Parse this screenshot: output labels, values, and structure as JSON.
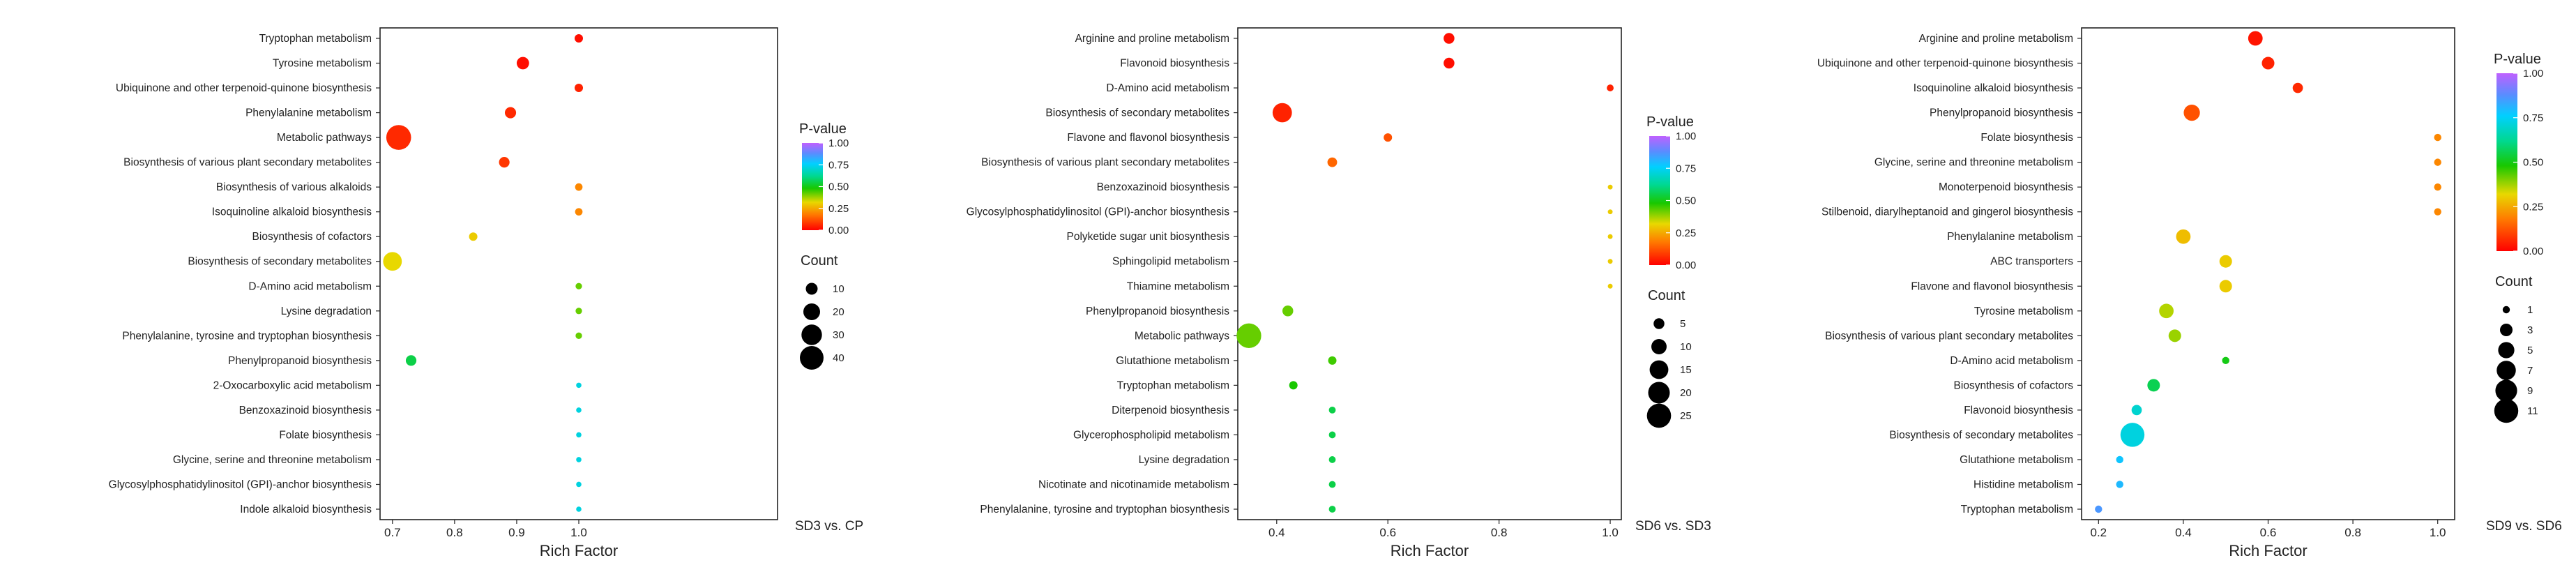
{
  "chart_data": [
    {
      "type": "scatter",
      "xlabel": "Rich Factor",
      "comparison": "SD3 vs. CP",
      "xlim": [
        0.68,
        1.32
      ],
      "xticks": [
        "0.7",
        "0.8",
        "0.9",
        "1.0"
      ],
      "xtick_values": [
        0.7,
        0.8,
        0.9,
        1.0
      ],
      "color_legend": {
        "title": "P-value",
        "ticks": [
          "1.00",
          "0.75",
          "0.50",
          "0.25",
          "0.00"
        ]
      },
      "size_legend": {
        "title": "Count",
        "labels": [
          "10",
          "20",
          "30",
          "40"
        ],
        "values": [
          10,
          20,
          30,
          40
        ]
      },
      "count_max": 45,
      "points": [
        {
          "pathway": "Tryptophan metabolism",
          "rich_factor": 1.0,
          "pvalue": 0.02,
          "count": 5
        },
        {
          "pathway": "Tyrosine metabolism",
          "rich_factor": 0.91,
          "pvalue": 0.02,
          "count": 11
        },
        {
          "pathway": "Ubiquinone and other terpenoid-quinone biosynthesis",
          "rich_factor": 1.0,
          "pvalue": 0.05,
          "count": 5
        },
        {
          "pathway": "Phenylalanine metabolism",
          "rich_factor": 0.89,
          "pvalue": 0.06,
          "count": 9
        },
        {
          "pathway": "Metabolic pathways",
          "rich_factor": 0.71,
          "pvalue": 0.06,
          "count": 44
        },
        {
          "pathway": "Biosynthesis of various plant secondary metabolites",
          "rich_factor": 0.88,
          "pvalue": 0.08,
          "count": 8
        },
        {
          "pathway": "Biosynthesis of various alkaloids",
          "rich_factor": 1.0,
          "pvalue": 0.2,
          "count": 4
        },
        {
          "pathway": "Isoquinoline alkaloid biosynthesis",
          "rich_factor": 1.0,
          "pvalue": 0.2,
          "count": 4
        },
        {
          "pathway": "Biosynthesis of cofactors",
          "rich_factor": 0.83,
          "pvalue": 0.3,
          "count": 5
        },
        {
          "pathway": "Biosynthesis of secondary metabolites",
          "rich_factor": 0.7,
          "pvalue": 0.32,
          "count": 25
        },
        {
          "pathway": "D-Amino acid metabolism",
          "rich_factor": 1.0,
          "pvalue": 0.42,
          "count": 3
        },
        {
          "pathway": "Lysine degradation",
          "rich_factor": 1.0,
          "pvalue": 0.42,
          "count": 3
        },
        {
          "pathway": "Phenylalanine, tyrosine and tryptophan biosynthesis",
          "rich_factor": 1.0,
          "pvalue": 0.42,
          "count": 3
        },
        {
          "pathway": "Phenylpropanoid biosynthesis",
          "rich_factor": 0.73,
          "pvalue": 0.55,
          "count": 8
        },
        {
          "pathway": "2-Oxocarboxylic acid metabolism",
          "rich_factor": 1.0,
          "pvalue": 0.72,
          "count": 2
        },
        {
          "pathway": "Benzoxazinoid biosynthesis",
          "rich_factor": 1.0,
          "pvalue": 0.72,
          "count": 2
        },
        {
          "pathway": "Folate biosynthesis",
          "rich_factor": 1.0,
          "pvalue": 0.72,
          "count": 2
        },
        {
          "pathway": "Glycine, serine and threonine metabolism",
          "rich_factor": 1.0,
          "pvalue": 0.72,
          "count": 2
        },
        {
          "pathway": "Glycosylphosphatidylinositol (GPI)-anchor biosynthesis",
          "rich_factor": 1.0,
          "pvalue": 0.72,
          "count": 2
        },
        {
          "pathway": "Indole alkaloid biosynthesis",
          "rich_factor": 1.0,
          "pvalue": 0.72,
          "count": 2
        }
      ]
    },
    {
      "type": "scatter",
      "xlabel": "Rich Factor",
      "comparison": "SD6 vs. SD3",
      "xlim": [
        0.33,
        1.02
      ],
      "xticks": [
        "0.4",
        "0.6",
        "0.8",
        "1.0"
      ],
      "xtick_values": [
        0.4,
        0.6,
        0.8,
        1.0
      ],
      "color_legend": {
        "title": "P-value",
        "ticks": [
          "1.00",
          "0.75",
          "0.50",
          "0.25",
          "0.00"
        ]
      },
      "size_legend": {
        "title": "Count",
        "labels": [
          "5",
          "10",
          "15",
          "20",
          "25"
        ],
        "values": [
          5,
          10,
          15,
          20,
          25
        ]
      },
      "count_max": 27,
      "points": [
        {
          "pathway": "Arginine and proline metabolism",
          "rich_factor": 0.71,
          "pvalue": 0.02,
          "count": 5
        },
        {
          "pathway": "Flavonoid biosynthesis",
          "rich_factor": 0.71,
          "pvalue": 0.02,
          "count": 5
        },
        {
          "pathway": "D-Amino acid metabolism",
          "rich_factor": 1.0,
          "pvalue": 0.05,
          "count": 2
        },
        {
          "pathway": "Biosynthesis of secondary metabolites",
          "rich_factor": 0.41,
          "pvalue": 0.05,
          "count": 16
        },
        {
          "pathway": "Flavone and flavonol biosynthesis",
          "rich_factor": 0.6,
          "pvalue": 0.12,
          "count": 3
        },
        {
          "pathway": "Biosynthesis of various plant secondary metabolites",
          "rich_factor": 0.5,
          "pvalue": 0.15,
          "count": 4
        },
        {
          "pathway": "Benzoxazinoid biosynthesis",
          "rich_factor": 1.0,
          "pvalue": 0.3,
          "count": 1
        },
        {
          "pathway": "Glycosylphosphatidylinositol (GPI)-anchor biosynthesis",
          "rich_factor": 1.0,
          "pvalue": 0.3,
          "count": 1
        },
        {
          "pathway": "Polyketide sugar unit biosynthesis",
          "rich_factor": 1.0,
          "pvalue": 0.3,
          "count": 1
        },
        {
          "pathway": "Sphingolipid metabolism",
          "rich_factor": 1.0,
          "pvalue": 0.3,
          "count": 1
        },
        {
          "pathway": "Thiamine metabolism",
          "rich_factor": 1.0,
          "pvalue": 0.3,
          "count": 1
        },
        {
          "pathway": "Phenylpropanoid biosynthesis",
          "rich_factor": 0.42,
          "pvalue": 0.42,
          "count": 5
        },
        {
          "pathway": "Metabolic pathways",
          "rich_factor": 0.35,
          "pvalue": 0.42,
          "count": 26
        },
        {
          "pathway": "Glutathione metabolism",
          "rich_factor": 0.5,
          "pvalue": 0.45,
          "count": 3
        },
        {
          "pathway": "Tryptophan metabolism",
          "rich_factor": 0.43,
          "pvalue": 0.48,
          "count": 3
        },
        {
          "pathway": "Diterpenoid biosynthesis",
          "rich_factor": 0.5,
          "pvalue": 0.55,
          "count": 2
        },
        {
          "pathway": "Glycerophospholipid metabolism",
          "rich_factor": 0.5,
          "pvalue": 0.55,
          "count": 2
        },
        {
          "pathway": "Lysine degradation",
          "rich_factor": 0.5,
          "pvalue": 0.55,
          "count": 2
        },
        {
          "pathway": "Nicotinate and nicotinamide metabolism",
          "rich_factor": 0.5,
          "pvalue": 0.55,
          "count": 2
        },
        {
          "pathway": "Phenylalanine, tyrosine and tryptophan biosynthesis",
          "rich_factor": 0.5,
          "pvalue": 0.55,
          "count": 2
        }
      ]
    },
    {
      "type": "scatter",
      "xlabel": "Rich Factor",
      "comparison": "SD9 vs. SD6",
      "xlim": [
        0.16,
        1.04
      ],
      "xticks": [
        "0.2",
        "0.4",
        "0.6",
        "0.8",
        "1.0"
      ],
      "xtick_values": [
        0.2,
        0.4,
        0.6,
        0.8,
        1.0
      ],
      "color_legend": {
        "title": "P-value",
        "ticks": [
          "1.00",
          "0.75",
          "0.50",
          "0.25",
          "0.00"
        ]
      },
      "size_legend": {
        "title": "Count",
        "labels": [
          "1",
          "3",
          "5",
          "7",
          "9",
          "11"
        ],
        "values": [
          1,
          3,
          5,
          7,
          9,
          11
        ]
      },
      "count_max": 12,
      "points": [
        {
          "pathway": "Arginine and proline metabolism",
          "rich_factor": 0.57,
          "pvalue": 0.03,
          "count": 4
        },
        {
          "pathway": "Ubiquinone and other terpenoid-quinone biosynthesis",
          "rich_factor": 0.6,
          "pvalue": 0.05,
          "count": 3
        },
        {
          "pathway": "Isoquinoline alkaloid biosynthesis",
          "rich_factor": 0.67,
          "pvalue": 0.06,
          "count": 2
        },
        {
          "pathway": "Phenylpropanoid biosynthesis",
          "rich_factor": 0.42,
          "pvalue": 0.12,
          "count": 5
        },
        {
          "pathway": "Folate biosynthesis",
          "rich_factor": 1.0,
          "pvalue": 0.2,
          "count": 1
        },
        {
          "pathway": "Glycine, serine and threonine metabolism",
          "rich_factor": 1.0,
          "pvalue": 0.2,
          "count": 1
        },
        {
          "pathway": "Monoterpenoid biosynthesis",
          "rich_factor": 1.0,
          "pvalue": 0.2,
          "count": 1
        },
        {
          "pathway": "Stilbenoid, diarylheptanoid and gingerol biosynthesis",
          "rich_factor": 1.0,
          "pvalue": 0.2,
          "count": 1
        },
        {
          "pathway": "Phenylalanine metabolism",
          "rich_factor": 0.4,
          "pvalue": 0.28,
          "count": 4
        },
        {
          "pathway": "ABC transporters",
          "rich_factor": 0.5,
          "pvalue": 0.3,
          "count": 3
        },
        {
          "pathway": "Flavone and flavonol biosynthesis",
          "rich_factor": 0.5,
          "pvalue": 0.3,
          "count": 3
        },
        {
          "pathway": "Tyrosine metabolism",
          "rich_factor": 0.36,
          "pvalue": 0.36,
          "count": 4
        },
        {
          "pathway": "Biosynthesis of various plant secondary metabolites",
          "rich_factor": 0.38,
          "pvalue": 0.38,
          "count": 3
        },
        {
          "pathway": "D-Amino acid metabolism",
          "rich_factor": 0.5,
          "pvalue": 0.5,
          "count": 1
        },
        {
          "pathway": "Biosynthesis of cofactors",
          "rich_factor": 0.33,
          "pvalue": 0.56,
          "count": 3
        },
        {
          "pathway": "Flavonoid biosynthesis",
          "rich_factor": 0.29,
          "pvalue": 0.7,
          "count": 2
        },
        {
          "pathway": "Biosynthesis of secondary metabolites",
          "rich_factor": 0.28,
          "pvalue": 0.72,
          "count": 11
        },
        {
          "pathway": "Glutathione metabolism",
          "rich_factor": 0.25,
          "pvalue": 0.78,
          "count": 1
        },
        {
          "pathway": "Histidine metabolism",
          "rich_factor": 0.25,
          "pvalue": 0.8,
          "count": 1
        },
        {
          "pathway": "Tryptophan metabolism",
          "rich_factor": 0.2,
          "pvalue": 0.86,
          "count": 1
        }
      ]
    }
  ]
}
